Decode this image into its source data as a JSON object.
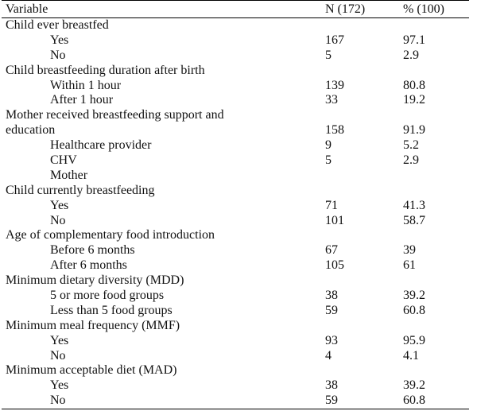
{
  "table": {
    "headers": {
      "variable": "Variable",
      "n": "N (172)",
      "pct": "% (100)"
    },
    "rows": [
      {
        "label": "Child ever breastfed",
        "indent": false,
        "n": "",
        "pct": ""
      },
      {
        "label": "Yes",
        "indent": true,
        "n": "167",
        "pct": "97.1"
      },
      {
        "label": "No",
        "indent": true,
        "n": "5",
        "pct": "2.9"
      },
      {
        "label": "Child breastfeeding duration after birth",
        "indent": false,
        "n": "",
        "pct": ""
      },
      {
        "label": "Within 1 hour",
        "indent": true,
        "n": "139",
        "pct": "80.8"
      },
      {
        "label": "After 1 hour",
        "indent": true,
        "n": "33",
        "pct": "19.2"
      },
      {
        "label": "Mother received breastfeeding support and",
        "indent": false,
        "n": "",
        "pct": ""
      },
      {
        "label": "education",
        "indent": false,
        "n": "158",
        "pct": "91.9"
      },
      {
        "label": "Healthcare provider",
        "indent": true,
        "n": "9",
        "pct": "5.2"
      },
      {
        "label": "CHV",
        "indent": true,
        "n": "5",
        "pct": "2.9"
      },
      {
        "label": "Mother",
        "indent": true,
        "n": "",
        "pct": ""
      },
      {
        "label": "Child currently breastfeeding",
        "indent": false,
        "n": "",
        "pct": ""
      },
      {
        "label": "Yes",
        "indent": true,
        "n": "71",
        "pct": "41.3"
      },
      {
        "label": "No",
        "indent": true,
        "n": "101",
        "pct": "58.7"
      },
      {
        "label": "Age of complementary food introduction",
        "indent": false,
        "n": "",
        "pct": ""
      },
      {
        "label": "Before 6 months",
        "indent": true,
        "n": "67",
        "pct": "39"
      },
      {
        "label": "After 6 months",
        "indent": true,
        "n": "105",
        "pct": "61"
      },
      {
        "label": "Minimum dietary diversity (MDD)",
        "indent": false,
        "n": "",
        "pct": ""
      },
      {
        "label": "5 or more food groups",
        "indent": true,
        "n": "38",
        "pct": "39.2"
      },
      {
        "label": "Less than 5 food groups",
        "indent": true,
        "n": "59",
        "pct": "60.8"
      },
      {
        "label": "Minimum meal frequency (MMF)",
        "indent": false,
        "n": "",
        "pct": ""
      },
      {
        "label": "Yes",
        "indent": true,
        "n": "93",
        "pct": "95.9"
      },
      {
        "label": "No",
        "indent": true,
        "n": "4",
        "pct": "4.1"
      },
      {
        "label": "Minimum acceptable diet (MAD)",
        "indent": false,
        "n": "",
        "pct": ""
      },
      {
        "label": "Yes",
        "indent": true,
        "n": "38",
        "pct": "39.2"
      },
      {
        "label": "No",
        "indent": true,
        "n": "59",
        "pct": "60.8"
      }
    ]
  }
}
